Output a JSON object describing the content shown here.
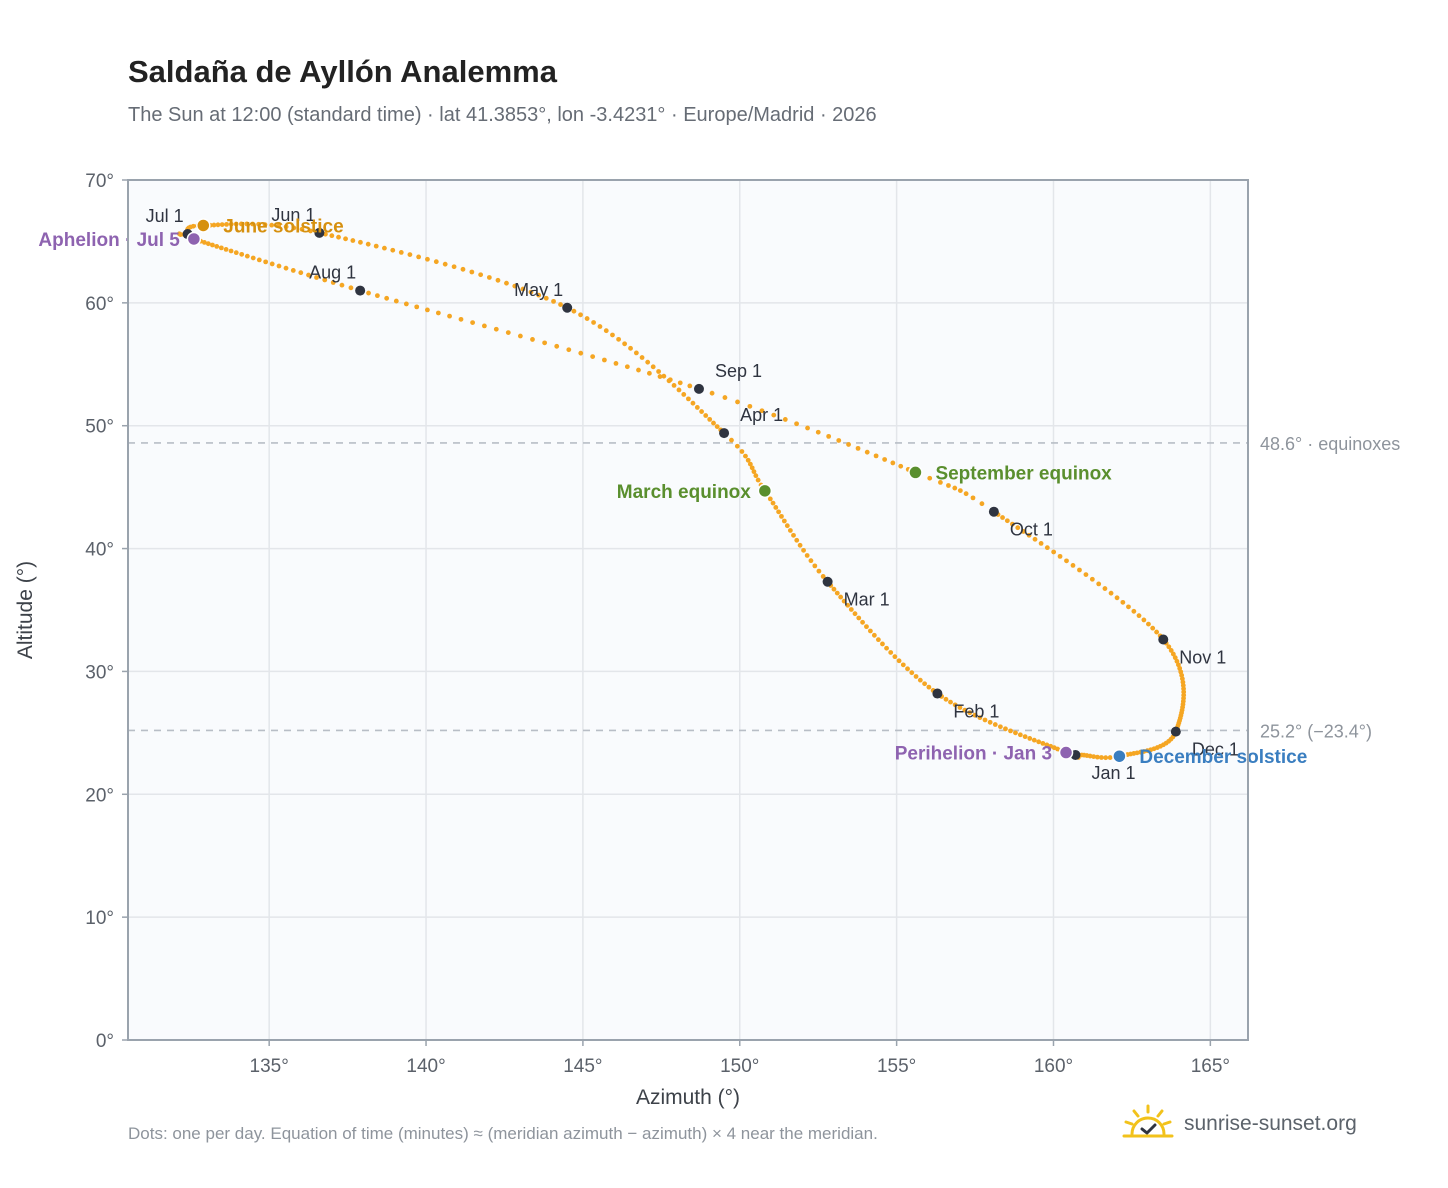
{
  "title": "Saldaña de Ayllón Analemma",
  "subtitle": "The Sun at 12:00 (standard time) · lat 41.3853°, lon -3.4231° · Europe/Madrid · 2026",
  "footnote": "Dots: one per day. Equation of time (minutes) ≈ (meridian azimuth − azimuth) × 4 near the meridian.",
  "brand": {
    "name": "sunrise-sunset.org",
    "icon": "sun-logo-icon"
  },
  "colors": {
    "curve": "#f5a623",
    "month_marker": "#2f3440",
    "equinox": "#5a8f2e",
    "june_solstice": "#d6900f",
    "december_solstice": "#3a7ec0",
    "apsis": "#8e63b0",
    "plot_bg": "#f9fbfd",
    "grid": "#e3e6ea",
    "axis_frame": "#9aa3ad",
    "reference_line": "#b8bec6"
  },
  "chart_data": {
    "type": "scatter",
    "xlabel": "Azimuth (°)",
    "ylabel": "Altitude (°)",
    "xlim": [
      130.5,
      166.2
    ],
    "ylim": [
      0,
      70
    ],
    "xticks": [
      135,
      140,
      145,
      150,
      155,
      160,
      165
    ],
    "yticks": [
      0,
      10,
      20,
      30,
      40,
      50,
      60,
      70
    ],
    "tick_suffix": "°",
    "grid": true,
    "series": [
      {
        "points": [
          {
            "doy": 1,
            "az": 160.7,
            "alt": 23.2
          },
          {
            "doy": 3,
            "az": 160.4,
            "alt": 23.4
          },
          {
            "doy": 32,
            "az": 156.3,
            "alt": 28.2
          },
          {
            "doy": 60,
            "az": 152.8,
            "alt": 37.3
          },
          {
            "doy": 79,
            "az": 150.8,
            "alt": 44.7
          },
          {
            "doy": 91,
            "az": 149.5,
            "alt": 49.4
          },
          {
            "doy": 121,
            "az": 144.5,
            "alt": 59.6
          },
          {
            "doy": 152,
            "az": 136.6,
            "alt": 65.7
          },
          {
            "doy": 172,
            "az": 132.9,
            "alt": 66.3
          },
          {
            "doy": 182,
            "az": 132.4,
            "alt": 65.6
          },
          {
            "doy": 186,
            "az": 132.6,
            "alt": 65.2
          },
          {
            "doy": 213,
            "az": 137.9,
            "alt": 61.0
          },
          {
            "doy": 244,
            "az": 148.7,
            "alt": 53.0
          },
          {
            "doy": 265,
            "az": 155.6,
            "alt": 46.2
          },
          {
            "doy": 274,
            "az": 158.1,
            "alt": 43.0
          },
          {
            "doy": 305,
            "az": 163.5,
            "alt": 32.6
          },
          {
            "doy": 335,
            "az": 163.9,
            "alt": 25.1
          },
          {
            "doy": 355,
            "az": 162.1,
            "alt": 23.1
          },
          {
            "doy": 365,
            "az": 160.9,
            "alt": 23.2
          }
        ]
      }
    ],
    "month_markers": [
      {
        "label": "Jan 1",
        "az": 160.7,
        "alt": 23.2,
        "pos": "below-right"
      },
      {
        "label": "Feb 1",
        "az": 156.3,
        "alt": 28.2,
        "pos": "below-right"
      },
      {
        "label": "Mar 1",
        "az": 152.8,
        "alt": 37.3,
        "pos": "below-right"
      },
      {
        "label": "Apr 1",
        "az": 149.5,
        "alt": 49.4,
        "pos": "above-right"
      },
      {
        "label": "May 1",
        "az": 144.5,
        "alt": 59.6,
        "pos": "above-left"
      },
      {
        "label": "Jun 1",
        "az": 136.6,
        "alt": 65.7,
        "pos": "above-left"
      },
      {
        "label": "Jul 1",
        "az": 132.4,
        "alt": 65.6,
        "pos": "above-left"
      },
      {
        "label": "Aug 1",
        "az": 137.9,
        "alt": 61.0,
        "pos": "above-left"
      },
      {
        "label": "Sep 1",
        "az": 148.7,
        "alt": 53.0,
        "pos": "above-right"
      },
      {
        "label": "Oct 1",
        "az": 158.1,
        "alt": 43.0,
        "pos": "below-right"
      },
      {
        "label": "Nov 1",
        "az": 163.5,
        "alt": 32.6,
        "pos": "below-right"
      },
      {
        "label": "Dec 1",
        "az": 163.9,
        "alt": 25.1,
        "pos": "below-right"
      }
    ],
    "events": [
      {
        "label": "March equinox",
        "az": 150.8,
        "alt": 44.7,
        "kind": "equinox",
        "pos": "left"
      },
      {
        "label": "September equinox",
        "az": 155.6,
        "alt": 46.2,
        "kind": "equinox",
        "pos": "right"
      },
      {
        "label": "June solstice",
        "az": 132.9,
        "alt": 66.3,
        "kind": "june_solstice",
        "pos": "right"
      },
      {
        "label": "December solstice",
        "az": 162.1,
        "alt": 23.1,
        "kind": "december_solstice",
        "pos": "right"
      },
      {
        "label": "Perihelion · Jan 3",
        "az": 160.4,
        "alt": 23.4,
        "kind": "apsis",
        "pos": "left"
      },
      {
        "label": "Aphelion · Jul 5",
        "az": 132.6,
        "alt": 65.2,
        "kind": "apsis",
        "pos": "left"
      }
    ],
    "reference_lines": [
      {
        "label": "48.6° · equinoxes",
        "alt": 48.6
      },
      {
        "label": "25.2° (−23.4°)",
        "alt": 25.2
      }
    ]
  }
}
